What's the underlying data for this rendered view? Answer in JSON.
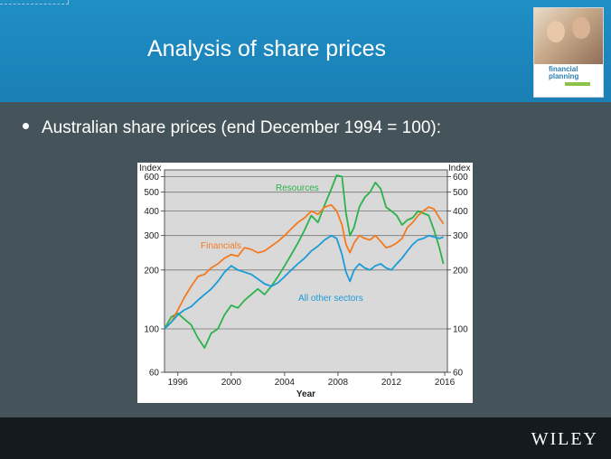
{
  "slide": {
    "title": "Analysis of share prices",
    "bullet": "Australian share prices (end December 1994 = 100):",
    "logo": "WILEY"
  },
  "book_cover": {
    "line1": "financial",
    "line2": "planning"
  },
  "colors": {
    "header": "#1a84ba",
    "resources": "#2bb24a",
    "financials": "#f47a20",
    "other": "#1b9bd7"
  },
  "chart_data": {
    "type": "line",
    "title": "",
    "xlabel": "Year",
    "ylabel_left": "Index",
    "ylabel_right": "Index",
    "yscale": "log",
    "ylim": [
      60,
      650
    ],
    "xlim": [
      1995,
      2016.2
    ],
    "yticks": [
      60,
      100,
      200,
      300,
      400,
      500,
      600
    ],
    "xticks": [
      1996,
      2000,
      2004,
      2008,
      2012,
      2016
    ],
    "series": [
      {
        "name": "Resources",
        "x": [
          1995.0,
          1995.5,
          1996.0,
          1996.5,
          1997.0,
          1997.5,
          1998.0,
          1998.5,
          1999.0,
          1999.5,
          2000.0,
          2000.5,
          2001.0,
          2001.5,
          2002.0,
          2002.5,
          2003.0,
          2003.5,
          2004.0,
          2004.5,
          2005.0,
          2005.5,
          2006.0,
          2006.5,
          2007.0,
          2007.5,
          2007.9,
          2008.3,
          2008.6,
          2008.9,
          2009.2,
          2009.6,
          2010.0,
          2010.4,
          2010.8,
          2011.2,
          2011.6,
          2012.0,
          2012.4,
          2012.8,
          2013.2,
          2013.6,
          2014.0,
          2014.4,
          2014.8,
          2015.2,
          2015.6,
          2015.9
        ],
        "values": [
          100,
          115,
          120,
          112,
          105,
          90,
          80,
          95,
          100,
          118,
          132,
          128,
          140,
          150,
          160,
          150,
          165,
          185,
          210,
          240,
          275,
          320,
          380,
          350,
          430,
          520,
          610,
          600,
          390,
          300,
          330,
          420,
          470,
          500,
          560,
          520,
          420,
          400,
          380,
          340,
          360,
          370,
          400,
          390,
          380,
          320,
          260,
          215
        ]
      },
      {
        "name": "Financials",
        "x": [
          1995.0,
          1995.5,
          1996.0,
          1996.5,
          1997.0,
          1997.5,
          1998.0,
          1998.5,
          1999.0,
          1999.5,
          2000.0,
          2000.5,
          2001.0,
          2001.5,
          2002.0,
          2002.5,
          2003.0,
          2003.5,
          2004.0,
          2004.5,
          2005.0,
          2005.5,
          2006.0,
          2006.5,
          2007.0,
          2007.5,
          2007.9,
          2008.3,
          2008.6,
          2008.9,
          2009.2,
          2009.6,
          2010.0,
          2010.4,
          2010.8,
          2011.2,
          2011.6,
          2012.0,
          2012.4,
          2012.8,
          2013.2,
          2013.6,
          2014.0,
          2014.4,
          2014.8,
          2015.2,
          2015.6,
          2015.9
        ],
        "values": [
          100,
          108,
          125,
          145,
          165,
          185,
          190,
          205,
          215,
          230,
          240,
          235,
          260,
          255,
          245,
          250,
          265,
          280,
          300,
          325,
          350,
          370,
          400,
          385,
          420,
          430,
          400,
          340,
          270,
          245,
          275,
          300,
          290,
          285,
          300,
          280,
          260,
          265,
          275,
          290,
          330,
          350,
          380,
          400,
          420,
          410,
          370,
          345
        ]
      },
      {
        "name": "All other sectors",
        "x": [
          1995.0,
          1995.5,
          1996.0,
          1996.5,
          1997.0,
          1997.5,
          1998.0,
          1998.5,
          1999.0,
          1999.5,
          2000.0,
          2000.5,
          2001.0,
          2001.5,
          2002.0,
          2002.5,
          2003.0,
          2003.5,
          2004.0,
          2004.5,
          2005.0,
          2005.5,
          2006.0,
          2006.5,
          2007.0,
          2007.5,
          2007.9,
          2008.3,
          2008.6,
          2008.9,
          2009.2,
          2009.6,
          2010.0,
          2010.4,
          2010.8,
          2011.2,
          2011.6,
          2012.0,
          2012.4,
          2012.8,
          2013.2,
          2013.6,
          2014.0,
          2014.4,
          2014.8,
          2015.2,
          2015.6,
          2015.9
        ],
        "values": [
          100,
          108,
          118,
          125,
          130,
          140,
          150,
          160,
          175,
          195,
          210,
          200,
          195,
          190,
          180,
          170,
          165,
          172,
          185,
          200,
          215,
          230,
          250,
          265,
          285,
          300,
          290,
          240,
          195,
          175,
          200,
          215,
          205,
          200,
          210,
          215,
          205,
          200,
          215,
          230,
          250,
          270,
          285,
          290,
          300,
          295,
          290,
          295
        ]
      }
    ],
    "labels": [
      {
        "text": "Resources",
        "series": "Resources"
      },
      {
        "text": "Financials",
        "series": "Financials"
      },
      {
        "text": "All other sectors",
        "series": "All other sectors"
      }
    ]
  }
}
